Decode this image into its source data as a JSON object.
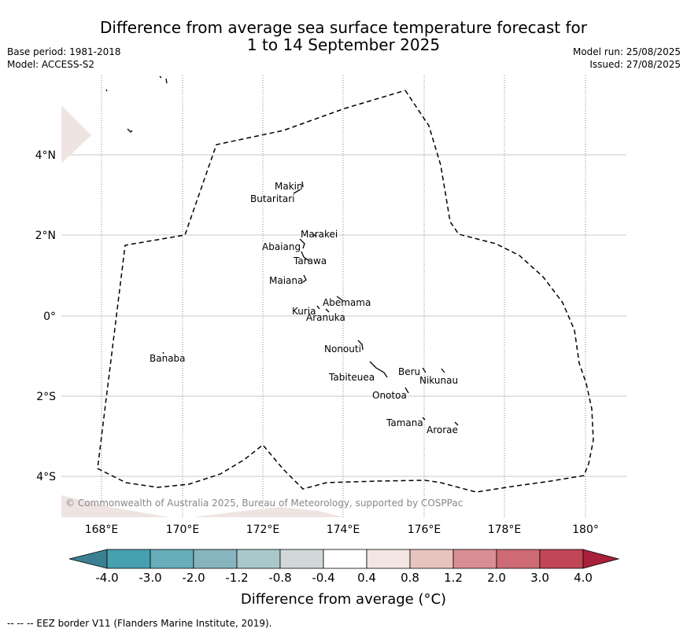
{
  "header": {
    "title_line1": "Difference from average sea surface temperature forecast for",
    "title_line2": "1 to 14 September 2025",
    "base_period": "Base period: 1981-2018",
    "model": "Model: ACCESS-S2",
    "model_run": "Model run: 25/08/2025",
    "issued": "Issued: 27/08/2025"
  },
  "map": {
    "longitude_ticks": [
      "168°E",
      "170°E",
      "172°E",
      "174°E",
      "176°E",
      "178°E",
      "180°"
    ],
    "latitude_ticks": [
      "4°N",
      "2°N",
      "0°",
      "2°S",
      "4°S"
    ],
    "copyright": "© Commonwealth of Australia 2025, Bureau of Meteorology, supported by COSPPac",
    "places": [
      "Makin",
      "Butaritari",
      "Marakei",
      "Abaiang",
      "Tarawa",
      "Maiana",
      "Abemama",
      "Kuria",
      "Aranuka",
      "Nonouti",
      "Tabiteuea",
      "Beru",
      "Nikunau",
      "Onotoa",
      "Tamana",
      "Arorae",
      "Banaba"
    ]
  },
  "colorbar": {
    "ticks": [
      "-4.0",
      "-3.0",
      "-2.0",
      "-1.2",
      "-0.8",
      "-0.4",
      "0.4",
      "0.8",
      "1.2",
      "2.0",
      "3.0",
      "4.0"
    ],
    "colors": [
      "#3a8090",
      "#45a0b0",
      "#68adba",
      "#87b5bf",
      "#a9c8cb",
      "#d1d9d8",
      "#ffffff",
      "#f2e5e4",
      "#e8c4c0",
      "#d98d94",
      "#cd6a74",
      "#c04555",
      "#a9203a"
    ],
    "label": "Difference from average (°C)"
  },
  "footer": {
    "legend": "--  --  -- EEZ border V11 (Flanders Marine Institute, 2019)."
  }
}
